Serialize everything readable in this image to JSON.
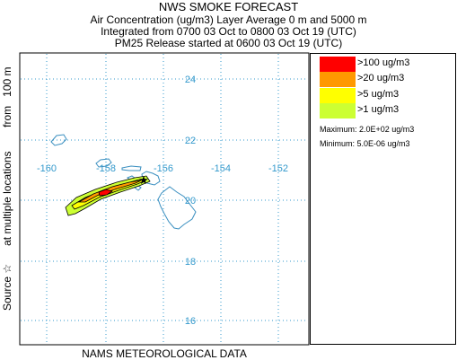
{
  "header": {
    "title": "NWS SMOKE FORECAST",
    "line1": "Air Concentration (ug/m3) Layer Average     0 m and  5000 m",
    "line2": "Integrated from 0700 03 Oct to 0800 03 Oct 19 (UTC)",
    "line3": "PM25 Release started at 0600 03 Oct 19 (UTC)"
  },
  "side_label": "Source ☆      at multiple locations        from   100 m",
  "footer": "NAMS METEOROLOGICAL DATA",
  "map": {
    "lon_labels": [
      "-160",
      "-158",
      "-156",
      "-154",
      "-152"
    ],
    "lat_labels": [
      "24",
      "22",
      "20",
      "18",
      "16"
    ],
    "grid_color": "#3399cc",
    "coast_color": "#3a8fc0",
    "source_marker": "★"
  },
  "legend": {
    "items": [
      {
        "label": ">100 ug/m3",
        "color": "#ff0000"
      },
      {
        "label": ">20 ug/m3",
        "color": "#ff9900"
      },
      {
        "label": ">5 ug/m3",
        "color": "#ffff00"
      },
      {
        "label": ">1 ug/m3",
        "color": "#ccff33"
      }
    ],
    "maximum": "Maximum: 2.0E+02 ug/m3",
    "minimum": "Minimum: 5.0E-06 ug/m3"
  }
}
